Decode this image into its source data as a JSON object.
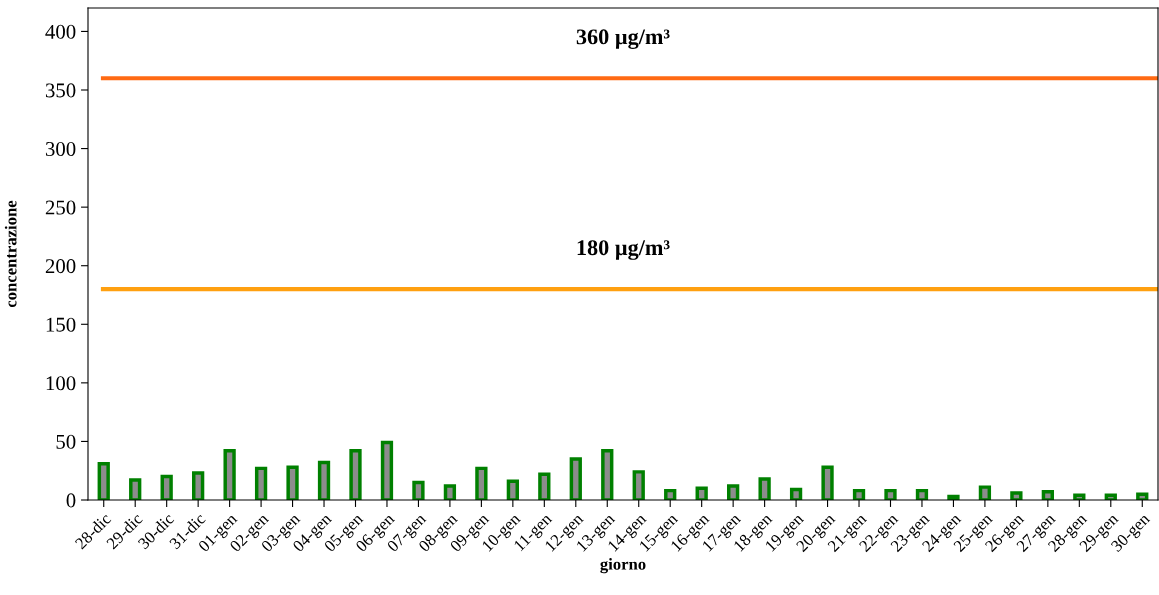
{
  "chart_data": {
    "type": "bar",
    "xlabel": "giorno",
    "ylabel": "concentrazione",
    "categories": [
      "28-dic",
      "29-dic",
      "30-dic",
      "31-dic",
      "01-gen",
      "02-gen",
      "03-gen",
      "04-gen",
      "05-gen",
      "06-gen",
      "07-gen",
      "08-gen",
      "09-gen",
      "10-gen",
      "11-gen",
      "12-gen",
      "13-gen",
      "14-gen",
      "15-gen",
      "16-gen",
      "17-gen",
      "18-gen",
      "19-gen",
      "20-gen",
      "21-gen",
      "22-gen",
      "23-gen",
      "24-gen",
      "25-gen",
      "26-gen",
      "27-gen",
      "28-gen",
      "29-gen",
      "30-gen"
    ],
    "series": [
      {
        "color": "#008000",
        "values": [
          31,
          17,
          20,
          23,
          42,
          27,
          28,
          32,
          42,
          49,
          15,
          12,
          27,
          16,
          22,
          35,
          42,
          24,
          8,
          10,
          12,
          18,
          9,
          28,
          8,
          8,
          8,
          3,
          11,
          6,
          7,
          4,
          4,
          5
        ]
      }
    ],
    "ylim": [
      0,
      420
    ],
    "yticks": [
      0,
      50,
      100,
      150,
      200,
      250,
      300,
      350,
      400
    ],
    "ref_lines": [
      {
        "axis": "y",
        "value": 360,
        "label": "360 µg/m³",
        "color": "#ff6a13"
      },
      {
        "axis": "y",
        "value": 180,
        "label": "180 µg/m³",
        "color": "#ffa010"
      }
    ],
    "grid": false,
    "legend": false
  }
}
